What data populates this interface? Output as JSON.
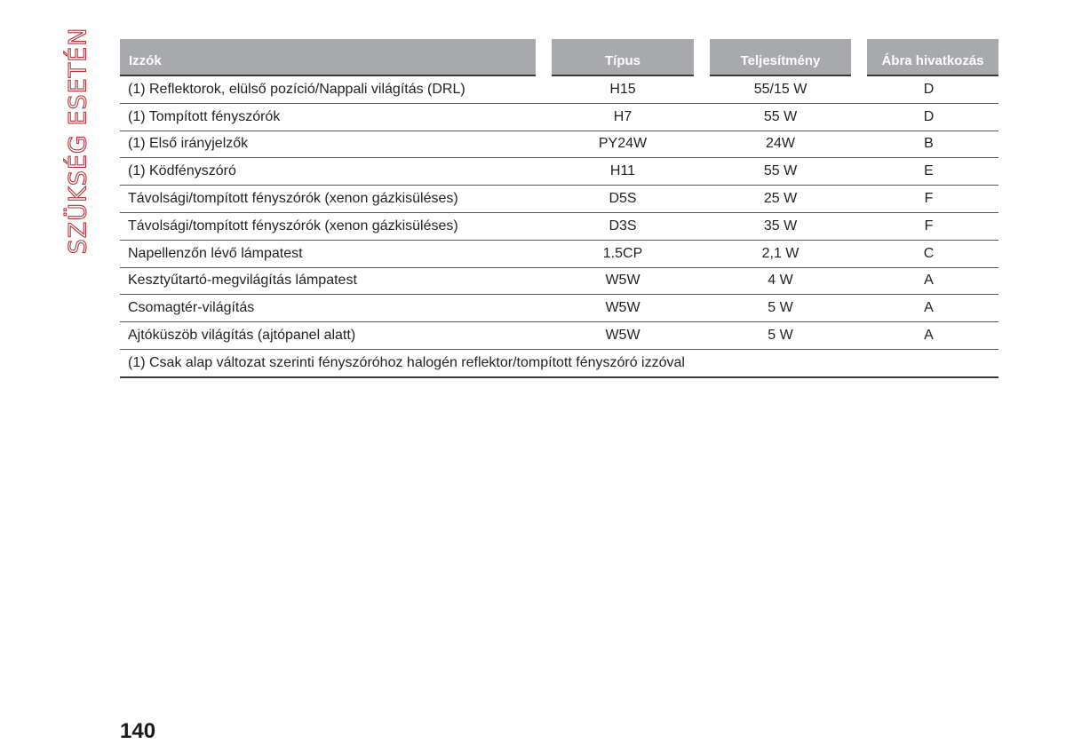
{
  "side_title": "SZÜKSÉG ESETÉN",
  "table": {
    "headers": [
      "Izzók",
      "Típus",
      "Teljesítmény",
      "Ábra hivatkozás"
    ],
    "rows": [
      [
        "(1) Reflektorok, elülső pozíció/Nappali világítás (DRL)",
        "H15",
        "55/15 W",
        "D"
      ],
      [
        "(1) Tompított fényszórók",
        "H7",
        "55 W",
        "D"
      ],
      [
        "(1) Első irányjelzők",
        "PY24W",
        "24W",
        "B"
      ],
      [
        "(1) Ködfényszóró",
        "H11",
        "55 W",
        "E"
      ],
      [
        "Távolsági/tompított fényszórók (xenon gázkisüléses)",
        "D5S",
        "25 W",
        "F"
      ],
      [
        "Távolsági/tompított fényszórók (xenon gázkisüléses)",
        "D3S",
        "35 W",
        "F"
      ],
      [
        "Napellenzőn lévő lámpatest",
        "1.5CP",
        "2,1 W",
        "C"
      ],
      [
        "Kesztyűtartó-megvilágítás lámpatest",
        "W5W",
        "4 W",
        "A"
      ],
      [
        "Csomagtér-világítás",
        "W5W",
        "5 W",
        "A"
      ],
      [
        "Ajtóküszöb világítás (ajtópanel alatt)",
        "W5W",
        "5 W",
        "A"
      ]
    ],
    "footnote": "(1) Csak alap változat szerinti fényszóróhoz halogén reflektor/tompított fényszóró izzóval"
  },
  "page_number": "140",
  "colors": {
    "accent": "#b5343a",
    "header_bg": "#a8a9ad"
  }
}
